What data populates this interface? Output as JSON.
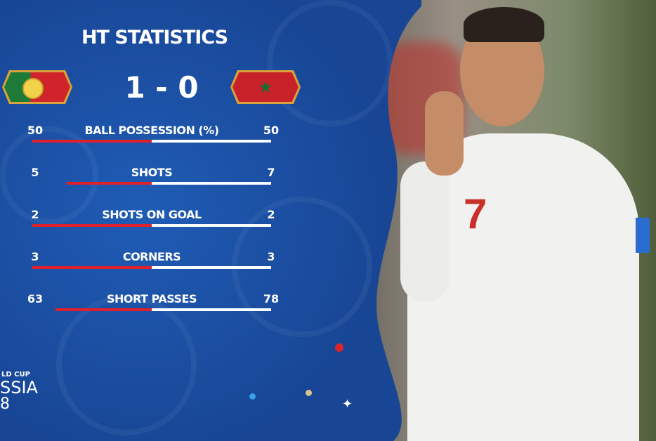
{
  "title": "HT STATISTICS",
  "teams": {
    "home": {
      "flag": "portugal-flag"
    },
    "away": {
      "flag": "morocco-flag"
    }
  },
  "score": "1 - 0",
  "stats": [
    {
      "label": "BALL POSSESSION (%)",
      "home": "50",
      "away": "50"
    },
    {
      "label": "SHOTS",
      "home": "5",
      "away": "7"
    },
    {
      "label": "SHOTS ON GOAL",
      "home": "2",
      "away": "2"
    },
    {
      "label": "CORNERS",
      "home": "3",
      "away": "3"
    },
    {
      "label": "SHORT PASSES",
      "home": "63",
      "away": "78"
    }
  ],
  "logo": {
    "line1": "LD CUP",
    "line2": "SSIA",
    "line3": "8"
  },
  "colors": {
    "background": "#1b4fa2",
    "home_bar": "#e0202a",
    "away_bar": "#ffffff"
  }
}
